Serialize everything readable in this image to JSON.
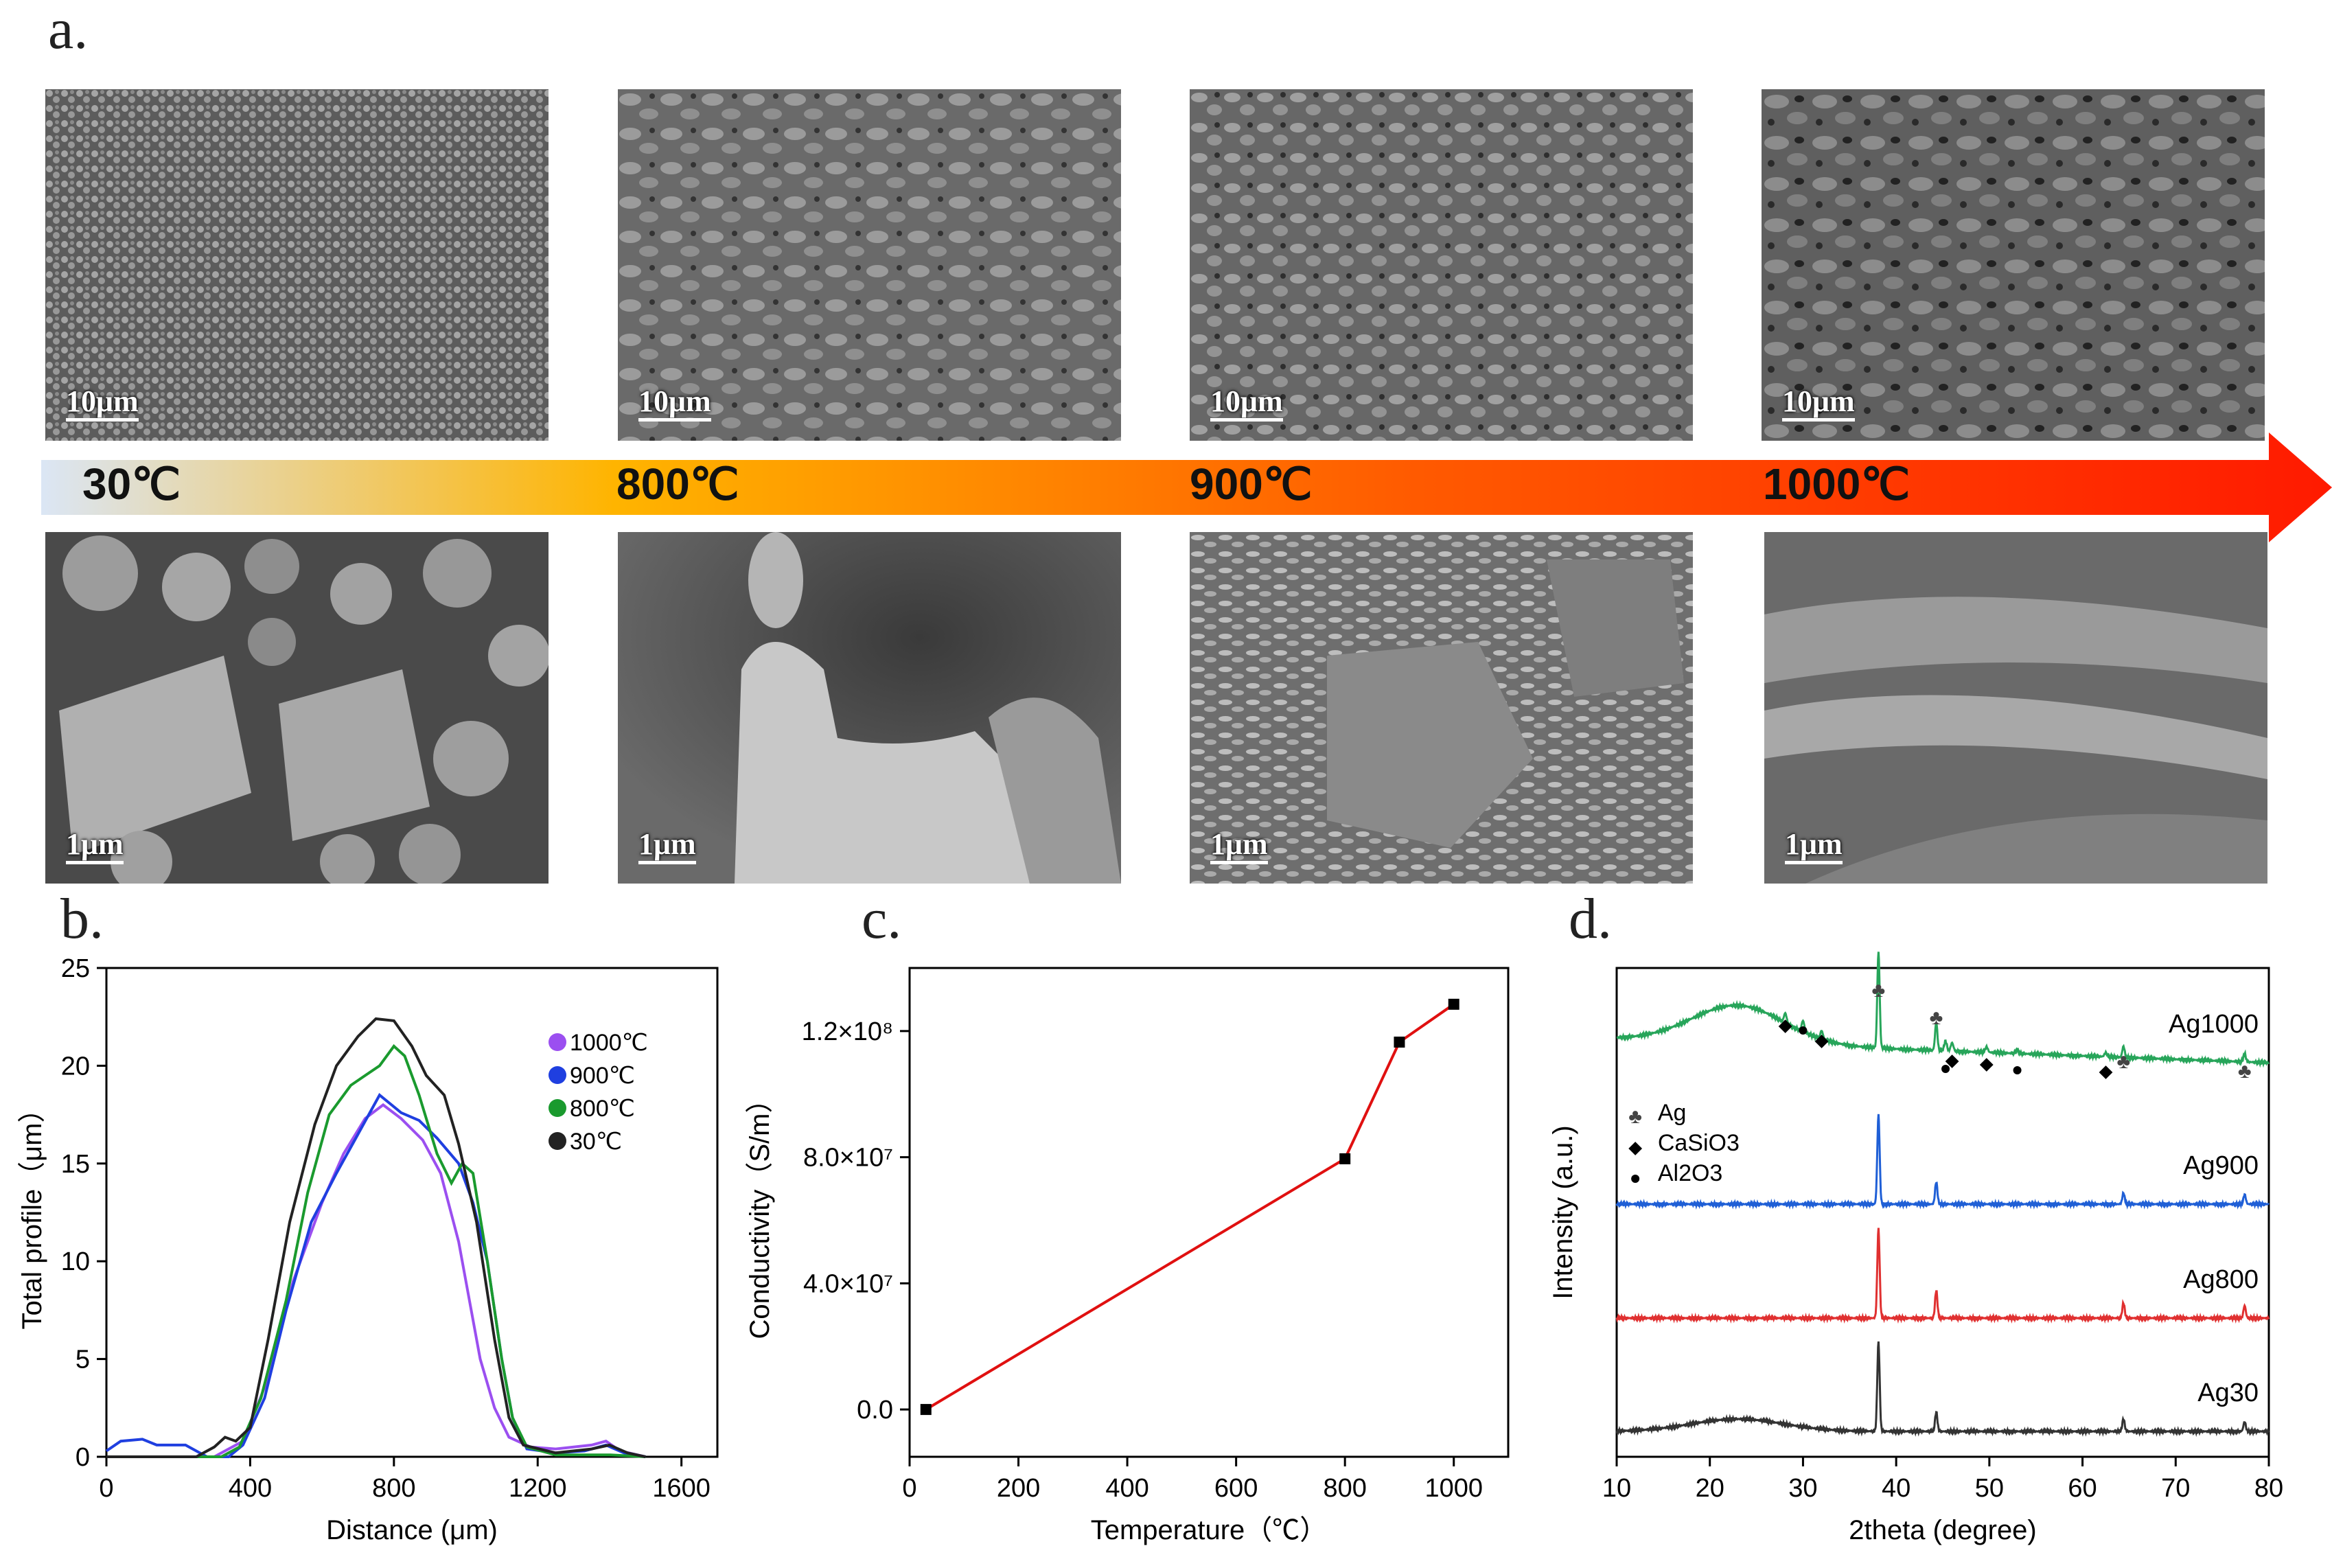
{
  "figure": {
    "panel_a": "a.",
    "panel_b": "b.",
    "panel_c": "c.",
    "panel_d": "d.",
    "temperatures": [
      "30℃",
      "800℃",
      "900℃",
      "1000℃"
    ],
    "scale_top": [
      "10μm",
      "10μm",
      "10μm",
      "10μm"
    ],
    "scale_bottom": [
      "1μm",
      "1μm",
      "1μm",
      "1μm"
    ],
    "colors": {
      "arrow_start": "#dbe6f5",
      "arrow_mid": "#ffb400",
      "arrow_end": "#ff1a00"
    }
  },
  "chart_data": [
    {
      "type": "line",
      "ylabel": "Total profile（μm）",
      "xlabel": "Distance (μm)",
      "xlim": [
        0,
        1700
      ],
      "ylim": [
        0,
        25
      ],
      "xticks": [
        0,
        400,
        800,
        1200,
        1600
      ],
      "yticks": [
        0,
        5,
        10,
        15,
        20,
        25
      ],
      "legend_position": "top-right",
      "series": [
        {
          "name": "1000℃",
          "color": "#9b4ff0",
          "points": [
            [
              0,
              0
            ],
            [
              300,
              0
            ],
            [
              380,
              0.8
            ],
            [
              450,
              4
            ],
            [
              520,
              9
            ],
            [
              600,
              13
            ],
            [
              660,
              15.5
            ],
            [
              720,
              17.3
            ],
            [
              770,
              18
            ],
            [
              820,
              17.3
            ],
            [
              880,
              16.2
            ],
            [
              930,
              14.5
            ],
            [
              980,
              11
            ],
            [
              1010,
              8
            ],
            [
              1040,
              5
            ],
            [
              1080,
              2.5
            ],
            [
              1120,
              1
            ],
            [
              1180,
              0.5
            ],
            [
              1250,
              0.4
            ],
            [
              1300,
              0.5
            ],
            [
              1350,
              0.6
            ],
            [
              1390,
              0.8
            ],
            [
              1430,
              0.3
            ],
            [
              1500,
              0
            ]
          ]
        },
        {
          "name": "900℃",
          "color": "#1f3fe0",
          "points": [
            [
              0,
              0.3
            ],
            [
              40,
              0.8
            ],
            [
              100,
              0.9
            ],
            [
              140,
              0.6
            ],
            [
              180,
              0.6
            ],
            [
              220,
              0.6
            ],
            [
              250,
              0.3
            ],
            [
              280,
              0
            ],
            [
              340,
              0
            ],
            [
              380,
              0.6
            ],
            [
              440,
              3
            ],
            [
              500,
              7.5
            ],
            [
              570,
              12
            ],
            [
              640,
              14.5
            ],
            [
              700,
              16.5
            ],
            [
              760,
              18.5
            ],
            [
              820,
              17.6
            ],
            [
              870,
              17.2
            ],
            [
              920,
              16.3
            ],
            [
              980,
              15
            ],
            [
              1020,
              13
            ],
            [
              1060,
              10
            ],
            [
              1100,
              5
            ],
            [
              1130,
              2
            ],
            [
              1170,
              0.4
            ],
            [
              1250,
              0.2
            ],
            [
              1330,
              0.3
            ],
            [
              1390,
              0.6
            ],
            [
              1440,
              0.2
            ],
            [
              1500,
              0
            ]
          ]
        },
        {
          "name": "800℃",
          "color": "#1a9a2e",
          "points": [
            [
              0,
              0
            ],
            [
              320,
              0
            ],
            [
              370,
              0.5
            ],
            [
              430,
              3
            ],
            [
              500,
              8
            ],
            [
              560,
              13.5
            ],
            [
              620,
              17.5
            ],
            [
              680,
              19
            ],
            [
              720,
              19.5
            ],
            [
              760,
              20
            ],
            [
              800,
              21
            ],
            [
              830,
              20.5
            ],
            [
              870,
              18.5
            ],
            [
              920,
              15.5
            ],
            [
              960,
              14
            ],
            [
              990,
              15
            ],
            [
              1020,
              14.5
            ],
            [
              1060,
              10
            ],
            [
              1100,
              5
            ],
            [
              1130,
              2
            ],
            [
              1170,
              0.5
            ],
            [
              1250,
              0.1
            ],
            [
              1400,
              0.1
            ],
            [
              1500,
              0
            ]
          ]
        },
        {
          "name": "30℃",
          "color": "#222222",
          "points": [
            [
              0,
              0
            ],
            [
              250,
              0
            ],
            [
              300,
              0.5
            ],
            [
              330,
              1
            ],
            [
              360,
              0.8
            ],
            [
              400,
              1.5
            ],
            [
              450,
              6
            ],
            [
              510,
              12
            ],
            [
              580,
              17
            ],
            [
              640,
              20
            ],
            [
              700,
              21.5
            ],
            [
              750,
              22.4
            ],
            [
              800,
              22.3
            ],
            [
              850,
              21
            ],
            [
              890,
              19.5
            ],
            [
              940,
              18.5
            ],
            [
              980,
              16
            ],
            [
              1030,
              12
            ],
            [
              1080,
              6
            ],
            [
              1120,
              2
            ],
            [
              1160,
              0.6
            ],
            [
              1250,
              0.2
            ],
            [
              1350,
              0.4
            ],
            [
              1400,
              0.6
            ],
            [
              1450,
              0.2
            ],
            [
              1500,
              0
            ]
          ]
        }
      ]
    },
    {
      "type": "line",
      "ylabel": "Conductivity（S/m）",
      "xlabel": "Temperature（℃）",
      "xlim": [
        0,
        1100
      ],
      "ylim": [
        -15000000.0,
        140000000.0
      ],
      "xticks": [
        0,
        200,
        400,
        600,
        800,
        1000
      ],
      "yticks": [
        0,
        40000000.0,
        80000000.0,
        120000000.0
      ],
      "ytick_labels": [
        "0.0",
        "4.0×10⁷",
        "8.0×10⁷",
        "1.2×10⁸"
      ],
      "series": [
        {
          "color": "#e01010",
          "marker": "square",
          "x": [
            30,
            800,
            900,
            1000
          ],
          "y": [
            0,
            79500000.0,
            116500000.0,
            128500000.0
          ]
        }
      ]
    },
    {
      "type": "line",
      "ylabel": "Intensity (a.u.)",
      "xlabel": "2theta (degree)",
      "xlim": [
        10,
        80
      ],
      "xticks": [
        10,
        20,
        30,
        40,
        50,
        60,
        70,
        80
      ],
      "series_labels": [
        "Ag1000",
        "Ag900",
        "Ag800",
        "Ag30"
      ],
      "series_colors": [
        "#27a55a",
        "#1f5fd6",
        "#e03030",
        "#333333"
      ],
      "peaks": {
        "Ag": [
          38.1,
          44.3,
          64.4,
          77.4
        ],
        "CaSiO3": [
          28.1,
          32.0,
          46.0,
          49.7,
          62.5
        ],
        "Al2O3": [
          30.0,
          45.3,
          53.0
        ]
      },
      "legend": [
        "Ag",
        "CaSiO3",
        "Al2O3"
      ]
    }
  ]
}
